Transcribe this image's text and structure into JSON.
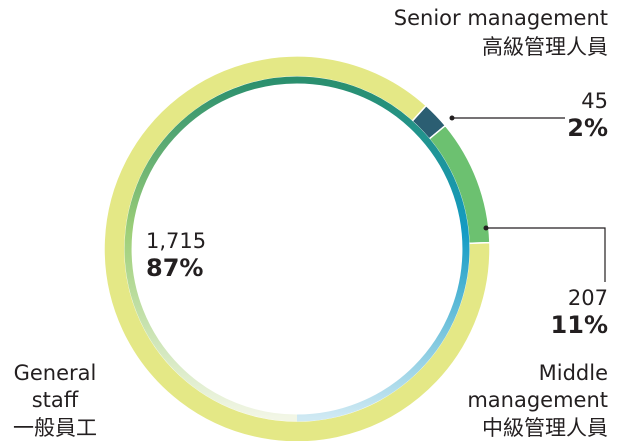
{
  "chart_data": {
    "type": "donut",
    "categories": [
      "Senior management",
      "Middle management",
      "General staff"
    ],
    "categories_zh": [
      "高級管理人員",
      "中級管理人員",
      "一般員工"
    ],
    "values": [
      45,
      207,
      1715
    ],
    "value_labels": [
      "45",
      "207",
      "1,715"
    ],
    "percentages": [
      2,
      11,
      87
    ],
    "percentage_labels": [
      "2%",
      "11%",
      "87%"
    ],
    "colors": [
      "#2b5e72",
      "#6cc170",
      "#e4e886"
    ]
  }
}
